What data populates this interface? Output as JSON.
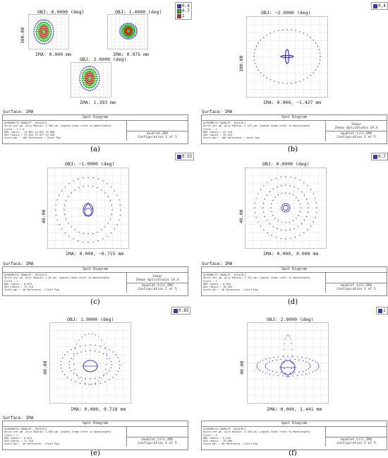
{
  "panels": {
    "a": {
      "caption": "(a)",
      "legend": [
        {
          "label": "0.4",
          "color": "#3333dd"
        },
        {
          "label": "0.7",
          "color": "#22bb22"
        },
        {
          "label": "1",
          "color": "#dd2222"
        }
      ],
      "yscale": "100.00",
      "plots": [
        {
          "obj": "OBJ: 0.0000 (deg)",
          "ima": "IMA: 0.000 mm"
        },
        {
          "obj": "OBJ: 1.4000 (deg)",
          "ima": "IMA: 0.975 mm"
        },
        {
          "obj": "OBJ: 2.0000 (deg)",
          "ima": "IMA: 1.393 mm"
        }
      ],
      "surface": "Surface: IMA",
      "box": {
        "title": "Spot Diagram",
        "lines": [
          "ACHROMATIC DOUBLET, 2024/6/1",
          "Units are µm.        Airy Radius: 2.260 µm. Legend items refer to Wavelengths",
          "Field       :   1         2         3",
          "RMS radius  :  13.881    14.823    15.008",
          "GEO radius  :  31.644    37.077    33.440",
          "Scale bar   : 100     Reference  : Chief Ray"
        ],
        "top": "",
        "file": "doublet.ZMX",
        "config": "Configuration 1 of 1"
      }
    },
    "b": {
      "caption": "(b)",
      "legend": [
        {
          "label": "0.4",
          "color": "#3333dd"
        }
      ],
      "yscale": "100.00",
      "obj": "OBJ: −2.0000 (deg)",
      "ima": "IMA: 0.000, −1.427 mm",
      "surface": "Surface: IMA",
      "box": {
        "title": "Spot Diagram",
        "lines": [
          "ACHROMATIC DOUBLET, 2024/6/1",
          "Units are µm.       Airy Radius: 1.573 µm. Legend items refer to Wavelengths",
          "Field       :   1",
          "RMS radius  :  22.110",
          "GEO radius  :  45.183",
          "Scale bar   : 100     Reference  : Chief Ray"
        ],
        "top": "Zemax\nZemax OpticStudio 19.4",
        "file": "doublet_tilt.ZMX",
        "config": "Configuration 1 of 5"
      }
    },
    "c": {
      "caption": "(c)",
      "legend": [
        {
          "label": "0.55",
          "color": "#3333dd"
        }
      ],
      "yscale": "40.00",
      "obj": "OBJ: −1.0000 (deg)",
      "ima": "IMA: 0.000, −0.715 mm",
      "surface": "Surface: IMA",
      "box": {
        "title": "Spot Diagram",
        "lines": [
          "ACHROMATIC DOUBLET, 2024/6/1",
          "Units are µm.       Airy Radius: 1.82 µm. Legend items refer to Wavelengths",
          "Field       :   1",
          "RMS radius  :   8.873",
          "GEO radius  :  17.210",
          "Scale bar   : 40      Reference  : Chief Ray"
        ],
        "top": "Zemax\nZemax OpticStudio 19.4",
        "file": "doublet_tilt.ZMX",
        "config": "Configuration 2 of 5"
      }
    },
    "d": {
      "caption": "(d)",
      "legend": [
        {
          "label": "0.7",
          "color": "#3333dd"
        }
      ],
      "yscale": "40.00",
      "obj": "OBJ: 0.0000 (deg)",
      "ima": "IMA: 0.000, 0.000 mm",
      "surface": "Surface: IMA",
      "box": {
        "title": "Spot Diagram",
        "lines": [
          "ACHROMATIC DOUBLET, 2024/6/1",
          "Units are µm.       Airy Radius: 2.321 µm. Legend items refer to Wavelengths",
          "Field       :   1",
          "RMS radius  :   8.054",
          "GEO radius  :  16.032",
          "Scale bar   : 40      Reference  : Chief Ray"
        ],
        "top": "",
        "file": "doublet_tilt.ZMX",
        "config": "Configuration 3 of 5"
      }
    },
    "e": {
      "caption": "(e)",
      "legend": [
        {
          "label": "0.85",
          "color": "#3333dd"
        }
      ],
      "yscale": "40.00",
      "obj": "OBJ: 1.0000 (deg)",
      "ima": "IMA: 0.000, 0.718 mm",
      "surface": "Surface: IMA",
      "box": {
        "title": "Spot Diagram",
        "lines": [
          "ACHROMATIC DOUBLET, 2024/6/1",
          "Units are µm.       Airy Radius: 2.820 µm. Legend items refer to Wavelengths",
          "Field       :   1",
          "RMS radius  :   8.014",
          "GEO radius  :  17.520",
          "Scale bar   : 40      Reference  : Chief Ray"
        ],
        "top": "",
        "file": "doublet_tilt.ZMX",
        "config": "Configuration 4 of 5"
      }
    },
    "f": {
      "caption": "(f)",
      "legend": [
        {
          "label": "1",
          "color": "#3333dd"
        }
      ],
      "yscale": "40.00",
      "obj": "OBJ: 2.0000 (deg)",
      "ima": "IMA: 0.000, 1.441 mm",
      "surface": "Surface: IMA",
      "box": {
        "title": "Spot Diagram",
        "lines": [
          "ACHROMATIC DOUBLET, 2024/6/1",
          "Units are µm.       Airy Radius: 3.334 µm. Legend items refer to Wavelengths",
          "Field       :   1",
          "RMS radius  :   8.310",
          "GEO radius  :  19.960",
          "Scale bar   : 40      Reference  : Chief Ray"
        ],
        "top": "",
        "file": "doublet_tilt.ZMX",
        "config": "Configuration 5 of 5"
      }
    }
  }
}
